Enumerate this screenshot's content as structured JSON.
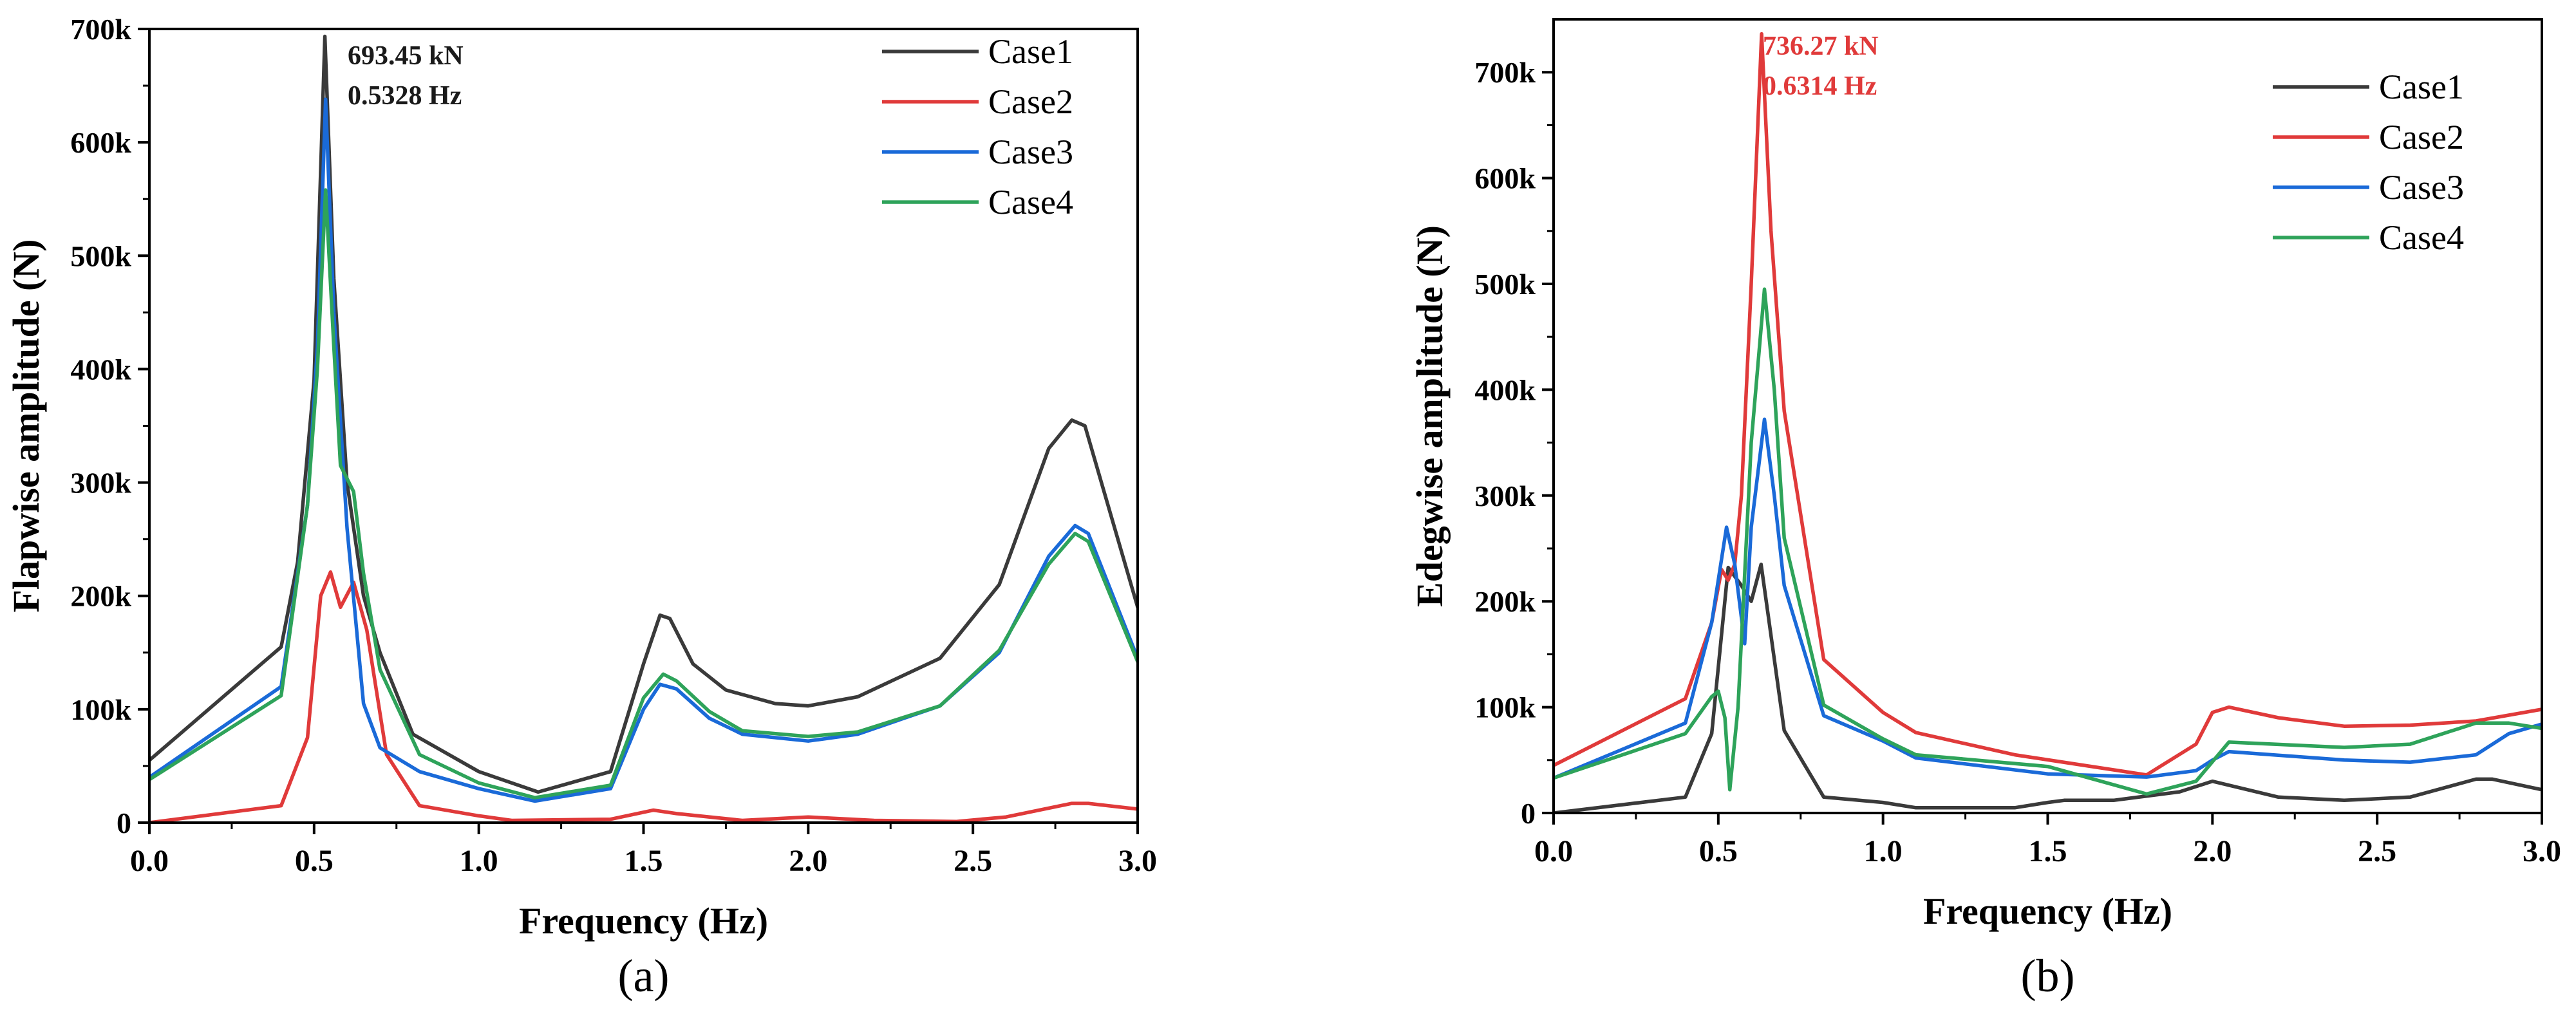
{
  "chart_data": [
    {
      "panel_label": "(a)",
      "type": "line",
      "xlabel": "Frequency (Hz)",
      "ylabel": "Flapwise amplitude (N)",
      "xlim": [
        0,
        3.0
      ],
      "ylim": [
        0,
        700000
      ],
      "x_ticks": [
        "0.0",
        "0.5",
        "1.0",
        "1.5",
        "2.0",
        "2.5",
        "3.0"
      ],
      "y_ticks": [
        "0",
        "100k",
        "200k",
        "300k",
        "400k",
        "500k",
        "600k",
        "700k"
      ],
      "legend_position": "top-right",
      "annotation": {
        "lines": [
          "693.45 kN",
          "0.5328 Hz"
        ],
        "color": "#1a1a1a",
        "x": 0.5328,
        "y": 693450
      },
      "series": [
        {
          "name": "Case1",
          "color": "#3a3a3a",
          "x": [
            0.0,
            0.4,
            0.45,
            0.5,
            0.5328,
            0.56,
            0.6,
            0.65,
            0.7,
            0.8,
            1.0,
            1.18,
            1.4,
            1.5,
            1.55,
            1.58,
            1.65,
            1.75,
            1.9,
            2.0,
            2.15,
            2.4,
            2.58,
            2.73,
            2.8,
            2.84,
            2.9,
            3.0
          ],
          "values": [
            55000,
            155000,
            230000,
            390000,
            693450,
            480000,
            300000,
            200000,
            150000,
            78000,
            45000,
            27000,
            45000,
            140000,
            183000,
            180000,
            140000,
            117000,
            105000,
            103000,
            111000,
            145000,
            210000,
            330000,
            355000,
            350000,
            290000,
            190000
          ]
        },
        {
          "name": "Case2",
          "color": "#e03a3a",
          "x": [
            0.0,
            0.4,
            0.48,
            0.52,
            0.55,
            0.58,
            0.62,
            0.66,
            0.72,
            0.82,
            1.0,
            1.1,
            1.4,
            1.53,
            1.6,
            1.8,
            2.0,
            2.2,
            2.45,
            2.6,
            2.8,
            2.85,
            3.0
          ],
          "values": [
            0,
            15000,
            75000,
            200000,
            221000,
            190000,
            212000,
            170000,
            60000,
            15000,
            6000,
            2000,
            3000,
            11000,
            8000,
            2000,
            5000,
            2000,
            1000,
            5000,
            17000,
            17000,
            12000
          ]
        },
        {
          "name": "Case3",
          "color": "#1a6ad8",
          "x": [
            0.0,
            0.4,
            0.48,
            0.51,
            0.535,
            0.56,
            0.6,
            0.65,
            0.7,
            0.82,
            1.0,
            1.17,
            1.4,
            1.5,
            1.55,
            1.6,
            1.7,
            1.8,
            2.0,
            2.15,
            2.4,
            2.58,
            2.73,
            2.81,
            2.85,
            3.0
          ],
          "values": [
            40000,
            120000,
            280000,
            420000,
            638000,
            450000,
            260000,
            105000,
            66000,
            45000,
            30000,
            19000,
            30000,
            100000,
            122000,
            118000,
            92000,
            78000,
            72000,
            78000,
            103000,
            150000,
            235000,
            262000,
            255000,
            145000
          ]
        },
        {
          "name": "Case4",
          "color": "#2ea35a",
          "x": [
            0.0,
            0.4,
            0.48,
            0.51,
            0.535,
            0.56,
            0.58,
            0.62,
            0.65,
            0.7,
            0.82,
            1.0,
            1.17,
            1.4,
            1.5,
            1.56,
            1.6,
            1.7,
            1.8,
            2.0,
            2.15,
            2.4,
            2.58,
            2.73,
            2.81,
            2.85,
            3.0
          ],
          "values": [
            38000,
            112000,
            280000,
            400000,
            558000,
            420000,
            315000,
            292000,
            220000,
            135000,
            60000,
            35000,
            22000,
            33000,
            110000,
            131000,
            125000,
            98000,
            81000,
            76000,
            80000,
            103000,
            152000,
            228000,
            255000,
            248000,
            142000
          ]
        }
      ]
    },
    {
      "panel_label": "(b)",
      "type": "line",
      "xlabel": "Frequency (Hz)",
      "ylabel": "Edegwise amplitude (N)",
      "xlim": [
        0,
        3.0
      ],
      "ylim": [
        0,
        750000
      ],
      "x_ticks": [
        "0.0",
        "0.5",
        "1.0",
        "1.5",
        "2.0",
        "2.5",
        "3.0"
      ],
      "y_ticks": [
        "0",
        "100k",
        "200k",
        "300k",
        "400k",
        "500k",
        "600k",
        "700k"
      ],
      "legend_position": "top-right",
      "annotation": {
        "lines": [
          "736.27 kN",
          "0.6314 Hz"
        ],
        "color": "#e03a3a",
        "x": 0.6314,
        "y": 736270
      },
      "series": [
        {
          "name": "Case1",
          "color": "#3a3a3a",
          "x": [
            0.0,
            0.4,
            0.48,
            0.53,
            0.57,
            0.6,
            0.63,
            0.65,
            0.7,
            0.82,
            1.0,
            1.1,
            1.4,
            1.5,
            1.55,
            1.7,
            1.9,
            2.0,
            2.2,
            2.4,
            2.6,
            2.8,
            2.85,
            3.0
          ],
          "values": [
            0,
            15000,
            75000,
            232000,
            215000,
            200000,
            235000,
            190000,
            78000,
            15000,
            10000,
            5000,
            5000,
            10000,
            12000,
            12000,
            20000,
            30000,
            15000,
            12000,
            15000,
            32000,
            32000,
            22000
          ]
        },
        {
          "name": "Case2",
          "color": "#e03a3a",
          "x": [
            0.0,
            0.4,
            0.48,
            0.51,
            0.53,
            0.55,
            0.57,
            0.6,
            0.6314,
            0.66,
            0.7,
            0.82,
            1.0,
            1.1,
            1.4,
            1.8,
            1.95,
            2.0,
            2.05,
            2.2,
            2.4,
            2.6,
            2.8,
            3.0
          ],
          "values": [
            45000,
            108000,
            180000,
            230000,
            220000,
            235000,
            300000,
            500000,
            736270,
            550000,
            380000,
            145000,
            95000,
            76000,
            55000,
            36000,
            65000,
            95000,
            100000,
            90000,
            82000,
            83000,
            87000,
            98000
          ]
        },
        {
          "name": "Case3",
          "color": "#1a6ad8",
          "x": [
            0.0,
            0.4,
            0.48,
            0.51,
            0.525,
            0.55,
            0.58,
            0.6,
            0.64,
            0.67,
            0.7,
            0.82,
            1.0,
            1.1,
            1.5,
            1.8,
            1.95,
            2.0,
            2.05,
            2.4,
            2.6,
            2.8,
            2.9,
            3.0
          ],
          "values": [
            33000,
            85000,
            180000,
            240000,
            270000,
            235000,
            160000,
            270000,
            372000,
            300000,
            215000,
            92000,
            68000,
            52000,
            37000,
            34000,
            40000,
            50000,
            58000,
            50000,
            48000,
            55000,
            75000,
            84000
          ]
        },
        {
          "name": "Case4",
          "color": "#2ea35a",
          "x": [
            0.0,
            0.4,
            0.48,
            0.5,
            0.52,
            0.535,
            0.56,
            0.6,
            0.64,
            0.67,
            0.7,
            0.82,
            1.0,
            1.1,
            1.5,
            1.8,
            1.95,
            2.05,
            2.4,
            2.6,
            2.8,
            2.9,
            3.0
          ],
          "values": [
            33000,
            75000,
            110000,
            115000,
            90000,
            22000,
            100000,
            350000,
            495000,
            400000,
            260000,
            102000,
            70000,
            55000,
            44000,
            18000,
            30000,
            67000,
            62000,
            65000,
            85000,
            85000,
            80000
          ]
        }
      ]
    }
  ]
}
